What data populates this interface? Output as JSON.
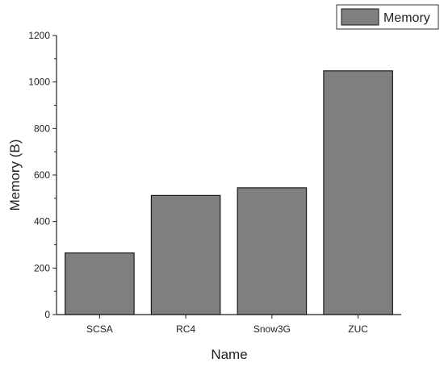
{
  "chart_data": {
    "type": "bar",
    "categories": [
      "SCSA",
      "RC4",
      "Snow3G",
      "ZUC"
    ],
    "series": [
      {
        "name": "Memory",
        "values": [
          265,
          512,
          545,
          1048
        ],
        "color": "#7f7f7f"
      }
    ],
    "xlabel": "Name",
    "ylabel": "Memory (B)",
    "ylim": [
      0,
      1200
    ],
    "yticks": [
      0,
      200,
      400,
      600,
      800,
      1000,
      1200
    ],
    "grid": false,
    "legend": "top-right",
    "bar_stroke": "#1a1a1a"
  }
}
